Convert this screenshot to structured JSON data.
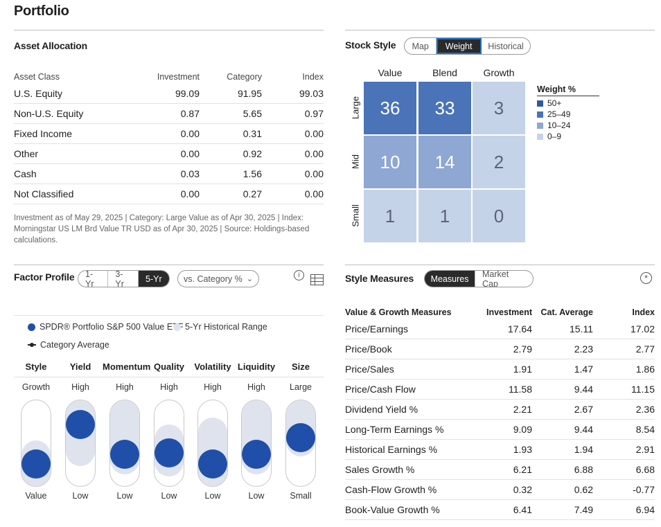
{
  "page": {
    "title": "Portfolio"
  },
  "asset_allocation": {
    "title": "Asset Allocation",
    "headers": [
      "Asset Class",
      "Investment",
      "Category",
      "Index"
    ],
    "rows": [
      [
        "U.S. Equity",
        "99.09",
        "91.95",
        "99.03"
      ],
      [
        "Non-U.S. Equity",
        "0.87",
        "5.65",
        "0.97"
      ],
      [
        "Fixed Income",
        "0.00",
        "0.31",
        "0.00"
      ],
      [
        "Other",
        "0.00",
        "0.92",
        "0.00"
      ],
      [
        "Cash",
        "0.03",
        "1.56",
        "0.00"
      ],
      [
        "Not Classified",
        "0.00",
        "0.27",
        "0.00"
      ]
    ],
    "note": "Investment as of May 29, 2025 | Category: Large Value as of Apr 30, 2025 | Index: Morningstar US LM Brd Value TR USD as of Apr 30, 2025 | Source: Holdings-based calculations."
  },
  "stock_style": {
    "title": "Stock Style",
    "tabs": [
      "Map",
      "Weight",
      "Historical"
    ],
    "active_tab": "Weight",
    "columns": [
      "Value",
      "Blend",
      "Growth"
    ],
    "rows": [
      "Large",
      "Mid",
      "Small"
    ],
    "cells": [
      [
        "36",
        "33",
        "3"
      ],
      [
        "10",
        "14",
        "2"
      ],
      [
        "1",
        "1",
        "0"
      ]
    ],
    "legend": {
      "title": "Weight %",
      "items": [
        {
          "label": "50+",
          "color": "#2c5aa0"
        },
        {
          "label": "25–49",
          "color": "#4a73b8"
        },
        {
          "label": "10–24",
          "color": "#8ea7d3"
        },
        {
          "label": "0–9",
          "color": "#c5d3e8"
        }
      ]
    }
  },
  "factor_profile": {
    "title": "Factor Profile",
    "tabs": [
      "1-Yr",
      "3-Yr",
      "5-Yr"
    ],
    "active_tab": "5-Yr",
    "compare_select": "vs. Category %",
    "legend": {
      "fund": "SPDR® Portfolio S&P 500 Value ETF",
      "range": "5-Yr Historical Range",
      "category": "Category Average"
    },
    "factors": [
      {
        "name": "Style",
        "top": "Growth",
        "bottom": "Value",
        "position": 0.13,
        "range": [
          0.13,
          0.36
        ]
      },
      {
        "name": "Yield",
        "top": "High",
        "bottom": "Low",
        "position": 0.83,
        "range": [
          0.4,
          0.98
        ]
      },
      {
        "name": "Momentum",
        "top": "High",
        "bottom": "Low",
        "position": 0.31,
        "range": [
          0.31,
          0.9
        ]
      },
      {
        "name": "Quality",
        "top": "High",
        "bottom": "Low",
        "position": 0.33,
        "range": [
          0.28,
          0.55
        ]
      },
      {
        "name": "Volatility",
        "top": "High",
        "bottom": "Low",
        "position": 0.13,
        "range": [
          0.13,
          0.63
        ]
      },
      {
        "name": "Liquidity",
        "top": "High",
        "bottom": "Low",
        "position": 0.31,
        "range": [
          0.31,
          0.83
        ]
      },
      {
        "name": "Size",
        "top": "Large",
        "bottom": "Small",
        "position": 0.6,
        "range": [
          0.52,
          0.92
        ]
      }
    ]
  },
  "style_measures": {
    "title": "Style Measures",
    "tabs": [
      "Measures",
      "Market Cap"
    ],
    "active_tab": "Measures",
    "headers": [
      "Value & Growth Measures",
      "Investment",
      "Cat. Average",
      "Index"
    ],
    "rows": [
      [
        "Price/Earnings",
        "17.64",
        "15.11",
        "17.02"
      ],
      [
        "Price/Book",
        "2.79",
        "2.23",
        "2.77"
      ],
      [
        "Price/Sales",
        "1.91",
        "1.47",
        "1.86"
      ],
      [
        "Price/Cash Flow",
        "11.58",
        "9.44",
        "11.15"
      ],
      [
        "Dividend Yield %",
        "2.21",
        "2.67",
        "2.36"
      ],
      [
        "Long-Term Earnings %",
        "9.09",
        "9.44",
        "8.54"
      ],
      [
        "Historical Earnings %",
        "1.93",
        "1.94",
        "2.91"
      ],
      [
        "Sales Growth %",
        "6.21",
        "6.88",
        "6.68"
      ],
      [
        "Cash-Flow Growth %",
        "0.32",
        "0.62",
        "-0.77"
      ],
      [
        "Book-Value Growth %",
        "6.41",
        "7.49",
        "6.94"
      ]
    ]
  },
  "icons": {
    "info": "info-icon",
    "table": "table-icon",
    "chevron": "chevron-down-icon",
    "asterisk": "asterisk-icon"
  }
}
